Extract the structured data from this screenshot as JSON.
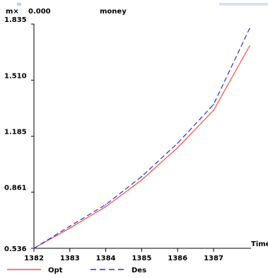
{
  "header": {
    "cursor_label": "m×",
    "cursor_value": "0.000",
    "variable": "money"
  },
  "chart_data": {
    "type": "line",
    "xlabel": "Time",
    "ylabel": "",
    "x_ticks": [
      "1382",
      "1383",
      "1384",
      "1385",
      "1386",
      "1387"
    ],
    "y_ticks": [
      "0.536",
      "0.861",
      "1.185",
      "1.510",
      "1.835"
    ],
    "xlim": [
      1382,
      1388.1
    ],
    "ylim": [
      0.536,
      1.835
    ],
    "grid": false,
    "legend_position": "bottom",
    "series": [
      {
        "name": "Opt",
        "color": "#ff4b4b",
        "dash": "solid",
        "x": [
          1382,
          1383,
          1384,
          1385,
          1386,
          1387,
          1388
        ],
        "y": [
          0.536,
          0.653,
          0.777,
          0.932,
          1.119,
          1.335,
          1.707
        ]
      },
      {
        "name": "Des",
        "color": "#2b2bd6",
        "dash": "dashed",
        "x": [
          1382,
          1383,
          1384,
          1385,
          1386,
          1387,
          1388
        ],
        "y": [
          0.536,
          0.664,
          0.789,
          0.952,
          1.145,
          1.369,
          1.808
        ]
      }
    ]
  }
}
